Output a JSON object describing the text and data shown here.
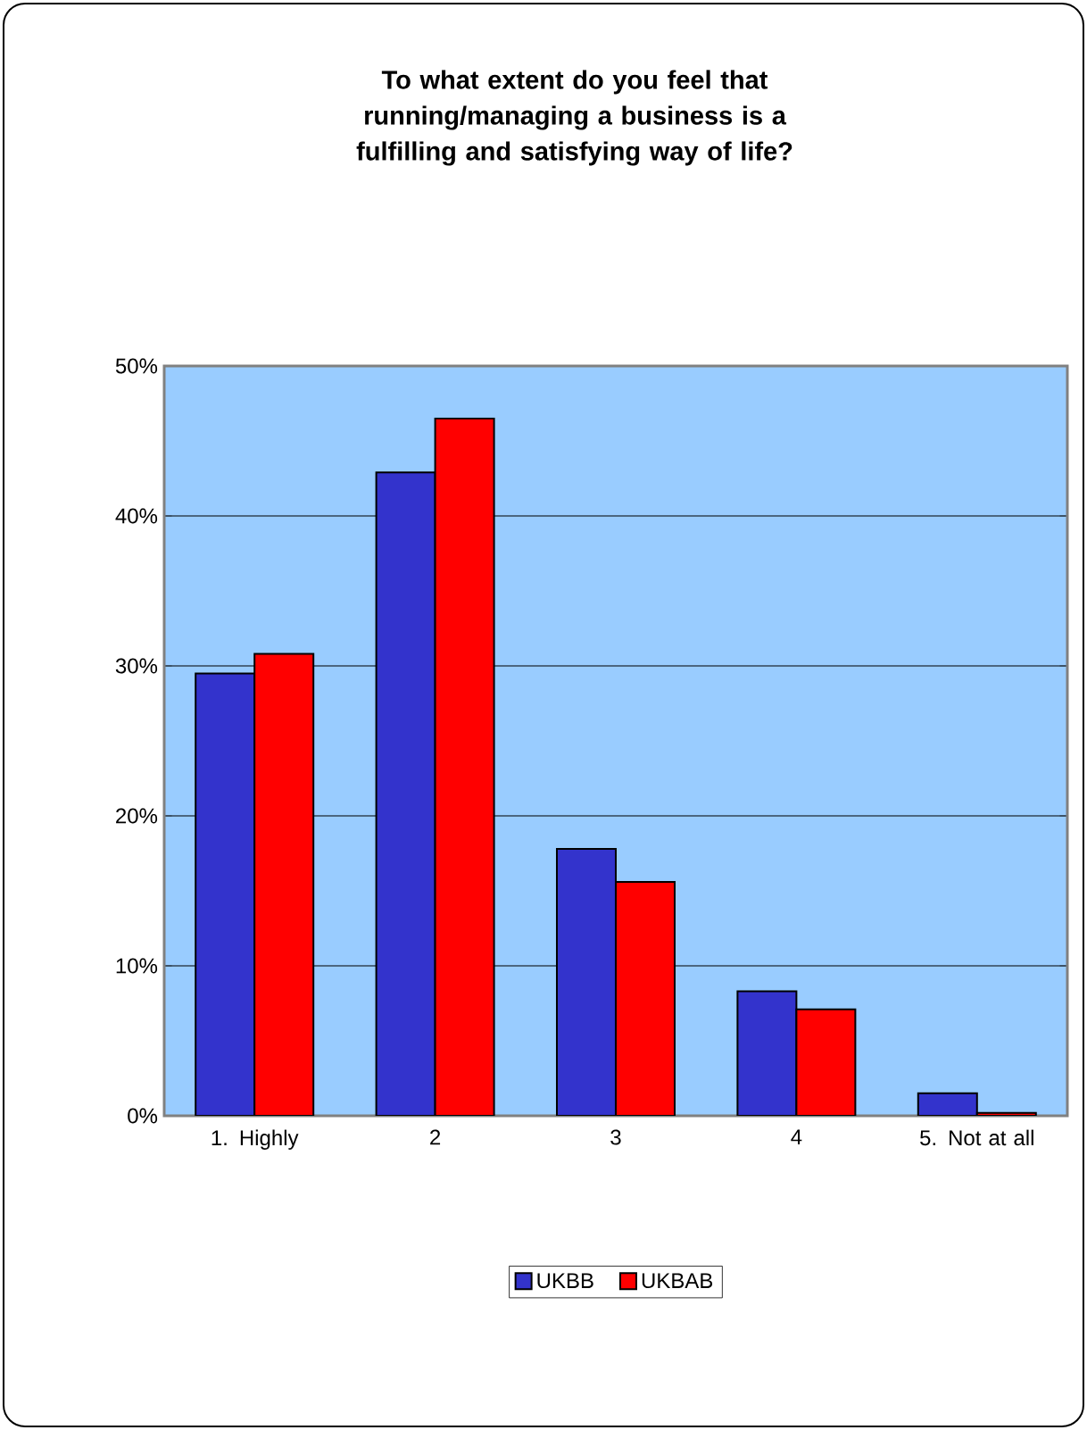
{
  "chart_data": {
    "type": "bar",
    "title": "To what extent do you feel that running/managing a business is a fulfilling and satisfying way of life?",
    "categories": [
      "1. Highly",
      "2",
      "3",
      "4",
      "5. Not at all"
    ],
    "series": [
      {
        "name": "UKBB",
        "color": "#3333cc",
        "values": [
          29.5,
          42.9,
          17.8,
          8.3,
          1.5
        ]
      },
      {
        "name": "UKBAB",
        "color": "#ff0000",
        "values": [
          30.8,
          46.5,
          15.6,
          7.1,
          0.2
        ]
      }
    ],
    "ylim": [
      0,
      50
    ],
    "yticks": [
      {
        "value": 0,
        "label": "0%"
      },
      {
        "value": 10,
        "label": "10%"
      },
      {
        "value": 20,
        "label": "20%"
      },
      {
        "value": 30,
        "label": "30%"
      },
      {
        "value": 40,
        "label": "40%"
      },
      {
        "value": 50,
        "label": "50%"
      }
    ],
    "grid": "y",
    "legend": "bottom"
  }
}
